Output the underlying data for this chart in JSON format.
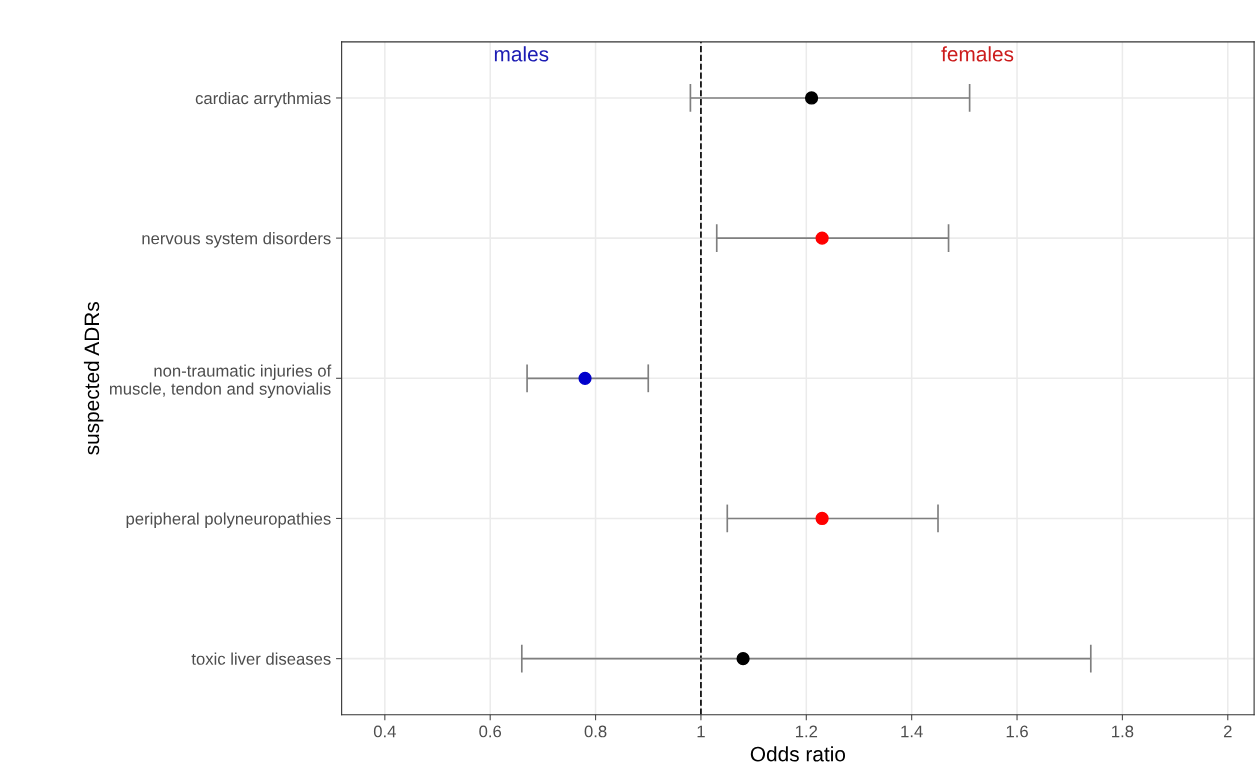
{
  "chart_data": {
    "type": "scatter",
    "orientation": "horizontal",
    "xlabel": "Odds ratio",
    "ylabel": "suspected ADRs",
    "categories": [
      "cardiac arrythmias",
      "nervous system disorders",
      "non-traumatic injuries of\nmuscle, tendon and synovialis",
      "peripheral polyneuropathies",
      "toxic liver diseases"
    ],
    "values": [
      1.21,
      1.23,
      0.78,
      1.23,
      1.08
    ],
    "errors": [
      [
        0.98,
        1.51
      ],
      [
        1.03,
        1.47
      ],
      [
        0.67,
        0.9
      ],
      [
        1.05,
        1.45
      ],
      [
        0.66,
        1.74
      ]
    ],
    "colors": [
      "#000000",
      "#ff0000",
      "#0000cc",
      "#ff0000",
      "#000000"
    ],
    "xlim": [
      0.318,
      2.05
    ],
    "xticks": [
      0.4,
      0.6,
      0.8,
      1,
      1.2,
      1.4,
      1.6,
      1.8,
      2
    ],
    "ref_lines": [
      {
        "axis": "x",
        "value": 1,
        "line_style": "dashed",
        "color": "#000000"
      }
    ],
    "annotations": [
      "males",
      "females"
    ],
    "grid": true,
    "marker": "circle"
  }
}
